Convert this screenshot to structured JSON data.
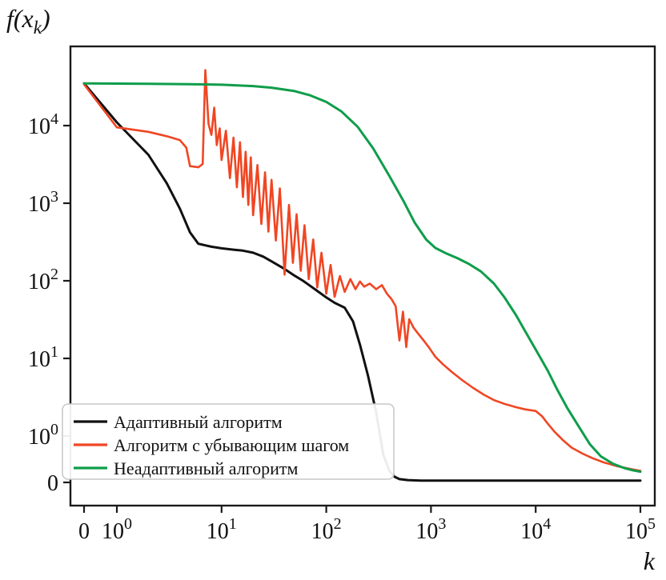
{
  "figure": {
    "ylabel": "f(x_k)",
    "xlabel": "k",
    "background": "#ffffff"
  },
  "chart_data": {
    "type": "line",
    "title": "",
    "xlabel": "k",
    "ylabel": "f(x_k)",
    "x_scale": "symlog",
    "y_scale": "symlog",
    "grid": false,
    "legend_position": "lower-left",
    "x_tick_values": [
      0,
      1,
      10,
      100,
      1000,
      10000,
      100000
    ],
    "x_ticks": [
      "0",
      "10^0",
      "10^1",
      "10^2",
      "10^3",
      "10^4",
      "10^5"
    ],
    "y_tick_values": [
      0,
      1,
      10,
      100,
      1000,
      10000
    ],
    "y_ticks": [
      "0",
      "10^0",
      "10^1",
      "10^2",
      "10^3",
      "10^4"
    ],
    "xlim": [
      0,
      100000
    ],
    "ylim": [
      0,
      50000
    ],
    "colors": {
      "adaptive": "#111111",
      "decreasing_step": "#f04623",
      "non_adaptive": "#0f9d4a",
      "frame": "#1a1a1a"
    },
    "series": [
      {
        "id": "adaptive",
        "name": "Адаптивный алгоритм",
        "color": "#111111",
        "width": 3,
        "points": [
          [
            0,
            35000
          ],
          [
            1,
            11000
          ],
          [
            2,
            4200
          ],
          [
            3,
            1800
          ],
          [
            4,
            850
          ],
          [
            5,
            420
          ],
          [
            6,
            300
          ],
          [
            8,
            275
          ],
          [
            10,
            262
          ],
          [
            13,
            252
          ],
          [
            16,
            245
          ],
          [
            20,
            230
          ],
          [
            25,
            205
          ],
          [
            30,
            178
          ],
          [
            40,
            142
          ],
          [
            50,
            116
          ],
          [
            60,
            100
          ],
          [
            80,
            76
          ],
          [
            100,
            61
          ],
          [
            120,
            52
          ],
          [
            150,
            45
          ],
          [
            180,
            30
          ],
          [
            210,
            15
          ],
          [
            250,
            6
          ],
          [
            300,
            2
          ],
          [
            350,
            0.6
          ],
          [
            400,
            0.25
          ],
          [
            450,
            0.12
          ],
          [
            500,
            0.07
          ],
          [
            600,
            0.05
          ],
          [
            800,
            0.04
          ],
          [
            1000,
            0.04
          ],
          [
            3000,
            0.04
          ],
          [
            10000,
            0.04
          ],
          [
            30000,
            0.04
          ],
          [
            100000,
            0.04
          ]
        ]
      },
      {
        "id": "decreasing-step",
        "name": "Алгоритм с убывающим шагом",
        "color": "#f04623",
        "width": 2.6,
        "points": [
          [
            0,
            34000
          ],
          [
            1,
            9500
          ],
          [
            2,
            8300
          ],
          [
            3,
            7300
          ],
          [
            4,
            6500
          ],
          [
            4.6,
            5200
          ],
          [
            5,
            3000
          ],
          [
            6,
            2900
          ],
          [
            6.6,
            3200
          ],
          [
            7,
            52000
          ],
          [
            7.5,
            10500
          ],
          [
            8,
            7600
          ],
          [
            8.5,
            17000
          ],
          [
            9,
            5600
          ],
          [
            9.6,
            9200
          ],
          [
            10,
            3600
          ],
          [
            11,
            8600
          ],
          [
            12,
            2100
          ],
          [
            13,
            7000
          ],
          [
            14,
            1600
          ],
          [
            15,
            6100
          ],
          [
            16,
            1200
          ],
          [
            17,
            4600
          ],
          [
            18,
            950
          ],
          [
            19,
            3900
          ],
          [
            20,
            700
          ],
          [
            22,
            3100
          ],
          [
            24,
            540
          ],
          [
            26,
            2500
          ],
          [
            28,
            430
          ],
          [
            30,
            2000
          ],
          [
            33,
            330
          ],
          [
            36,
            1550
          ],
          [
            40,
            120
          ],
          [
            44,
            950
          ],
          [
            48,
            170
          ],
          [
            52,
            720
          ],
          [
            57,
            135
          ],
          [
            62,
            520
          ],
          [
            68,
            105
          ],
          [
            75,
            340
          ],
          [
            82,
            82
          ],
          [
            90,
            230
          ],
          [
            100,
            68
          ],
          [
            110,
            160
          ],
          [
            120,
            62
          ],
          [
            135,
            115
          ],
          [
            150,
            72
          ],
          [
            170,
            105
          ],
          [
            190,
            78
          ],
          [
            210,
            98
          ],
          [
            230,
            84
          ],
          [
            260,
            92
          ],
          [
            300,
            78
          ],
          [
            340,
            88
          ],
          [
            380,
            68
          ],
          [
            420,
            58
          ],
          [
            460,
            47
          ],
          [
            500,
            17
          ],
          [
            540,
            40
          ],
          [
            580,
            14
          ],
          [
            620,
            32
          ],
          [
            680,
            25
          ],
          [
            750,
            21
          ],
          [
            850,
            17
          ],
          [
            950,
            14
          ],
          [
            1100,
            10.5
          ],
          [
            1300,
            8.4
          ],
          [
            1600,
            6.6
          ],
          [
            2000,
            5.2
          ],
          [
            2500,
            4.2
          ],
          [
            3200,
            3.4
          ],
          [
            4000,
            2.9
          ],
          [
            5000,
            2.6
          ],
          [
            6500,
            2.35
          ],
          [
            8000,
            2.2
          ],
          [
            10000,
            2.1
          ],
          [
            11500,
            1.8
          ],
          [
            13000,
            1.45
          ],
          [
            15000,
            1.15
          ],
          [
            18000,
            0.92
          ],
          [
            22000,
            0.75
          ],
          [
            28000,
            0.62
          ],
          [
            35000,
            0.52
          ],
          [
            45000,
            0.43
          ],
          [
            60000,
            0.35
          ],
          [
            80000,
            0.29
          ],
          [
            100000,
            0.25
          ]
        ]
      },
      {
        "id": "non-adaptive",
        "name": "Неадаптивный алгоритм",
        "color": "#0f9d4a",
        "width": 3,
        "points": [
          [
            0,
            35000
          ],
          [
            2,
            34600
          ],
          [
            5,
            34200
          ],
          [
            10,
            33600
          ],
          [
            20,
            32300
          ],
          [
            30,
            30800
          ],
          [
            50,
            27800
          ],
          [
            70,
            24600
          ],
          [
            100,
            20200
          ],
          [
            140,
            15200
          ],
          [
            200,
            9600
          ],
          [
            280,
            5100
          ],
          [
            400,
            2250
          ],
          [
            550,
            1050
          ],
          [
            700,
            560
          ],
          [
            900,
            340
          ],
          [
            1100,
            265
          ],
          [
            1400,
            225
          ],
          [
            1800,
            195
          ],
          [
            2300,
            165
          ],
          [
            3000,
            132
          ],
          [
            4000,
            92
          ],
          [
            5000,
            62
          ],
          [
            6500,
            36
          ],
          [
            8000,
            22
          ],
          [
            10000,
            13
          ],
          [
            13000,
            7
          ],
          [
            16000,
            4
          ],
          [
            20000,
            2.3
          ],
          [
            26000,
            1.3
          ],
          [
            33000,
            0.82
          ],
          [
            42000,
            0.56
          ],
          [
            55000,
            0.4
          ],
          [
            70000,
            0.31
          ],
          [
            85000,
            0.26
          ],
          [
            100000,
            0.23
          ]
        ]
      }
    ]
  }
}
